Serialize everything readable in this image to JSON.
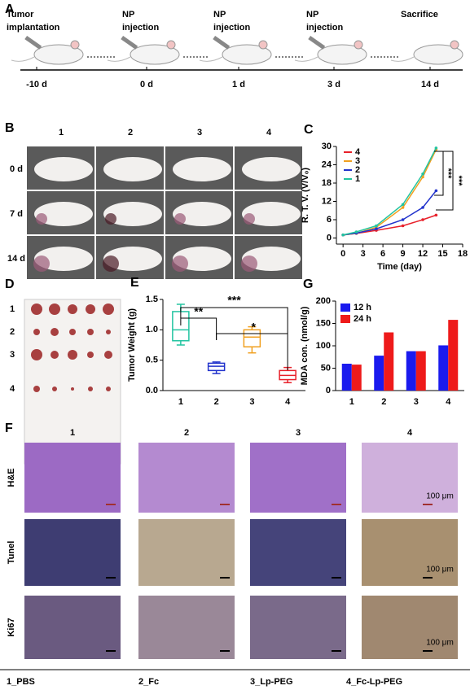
{
  "panel_a": {
    "label": "A",
    "events": [
      [
        "Tumor",
        "implantation"
      ],
      [
        "NP",
        "injection"
      ],
      [
        "NP",
        "injection"
      ],
      [
        "NP",
        "injection"
      ],
      [
        "Sacrifice"
      ]
    ],
    "days": [
      "-10 d",
      "0 d",
      "1 d",
      "3 d",
      "14 d"
    ]
  },
  "panel_b": {
    "label": "B",
    "columns": [
      "1",
      "2",
      "3",
      "4"
    ],
    "rows": [
      "0 d",
      "7 d",
      "14 d"
    ]
  },
  "panel_d": {
    "label": "D",
    "rows": [
      "1",
      "2",
      "3",
      "4"
    ]
  },
  "panel_f": {
    "label": "F",
    "columns": [
      "1",
      "2",
      "3",
      "4"
    ],
    "rows": [
      "H&E",
      "Tunel",
      "Ki67"
    ],
    "scale_bar": "100 μm",
    "groups": [
      "1_PBS",
      "2_Fc",
      "3_Lp-PEG",
      "4_Fc-Lp-PEG"
    ]
  },
  "chart_data": [
    {
      "type": "line",
      "panel": "C",
      "y_label": "R. T. V. (V/V₀)",
      "x_label": "Time (day)",
      "x": [
        0,
        2,
        5,
        9,
        12,
        14
      ],
      "xlim": [
        -1,
        18
      ],
      "xticks": [
        0,
        3,
        6,
        9,
        12,
        15,
        18
      ],
      "ylim": [
        -2,
        30
      ],
      "yticks": [
        0,
        6,
        12,
        18,
        24,
        30
      ],
      "series": [
        {
          "name": "4",
          "color": "#e8202a",
          "values": [
            1,
            1.5,
            2.5,
            4,
            6,
            7.5
          ]
        },
        {
          "name": "3",
          "color": "#f0a020",
          "values": [
            1,
            1.5,
            3.5,
            10,
            20,
            29
          ]
        },
        {
          "name": "2",
          "color": "#2233cc",
          "values": [
            1,
            1.6,
            3,
            6,
            10,
            15.5
          ]
        },
        {
          "name": "1",
          "color": "#22c4a0",
          "values": [
            1,
            2,
            4,
            11,
            21,
            29.5
          ]
        }
      ],
      "annotations": [
        "***",
        "***"
      ]
    },
    {
      "type": "box",
      "panel": "E",
      "y_label": "Tumor Weight (g)",
      "categories": [
        "1",
        "2",
        "3",
        "4"
      ],
      "colors": [
        "#22c4a0",
        "#2233cc",
        "#f0a020",
        "#e8202a"
      ],
      "min": [
        0.75,
        0.28,
        0.62,
        0.13
      ],
      "q1": [
        0.82,
        0.33,
        0.72,
        0.18
      ],
      "median": [
        1.0,
        0.4,
        0.88,
        0.25
      ],
      "q3": [
        1.3,
        0.45,
        1.0,
        0.33
      ],
      "max": [
        1.42,
        0.47,
        1.05,
        0.38
      ],
      "ylim": [
        0,
        1.5
      ],
      "yticks": [
        {
          "value": 0,
          "label": "0.0"
        },
        {
          "value": 0.5,
          "label": "0.5"
        },
        {
          "value": 1,
          "label": "1.0"
        },
        {
          "value": 1.5,
          "label": "1.5"
        }
      ],
      "annotations": [
        "**",
        "***",
        "*"
      ]
    },
    {
      "type": "bar",
      "panel": "G",
      "y_label": "MDA con. (nmol/g)",
      "categories": [
        "1",
        "2",
        "3",
        "4"
      ],
      "ylim": [
        0,
        200
      ],
      "yticks": [
        0,
        50,
        100,
        150,
        200
      ],
      "series": [
        {
          "name": "12 h",
          "color": "#1a1aee",
          "values": [
            60,
            78,
            88,
            101
          ]
        },
        {
          "name": "24 h",
          "color": "#ee1a1a",
          "values": [
            58,
            130,
            88,
            158
          ]
        }
      ]
    }
  ]
}
